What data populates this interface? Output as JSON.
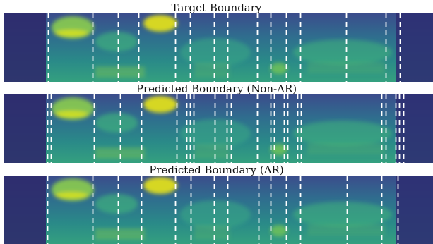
{
  "chart_data": [
    {
      "type": "heatmap",
      "title": "Target Boundary",
      "colormap": "viridis",
      "grid": false,
      "boundary_line_style": "white dashed vertical lines",
      "boundaries": [
        68,
        131,
        167,
        196,
        248,
        269,
        303,
        322,
        364,
        383,
        405,
        425,
        490,
        546,
        566
      ]
    },
    {
      "type": "heatmap",
      "title": "Predicted Boundary (Non-AR)",
      "colormap": "viridis",
      "grid": false,
      "boundary_line_style": "white dashed vertical lines",
      "boundaries": [
        67,
        72,
        133,
        170,
        200,
        250,
        264,
        269,
        274,
        304,
        321,
        327,
        364,
        383,
        388,
        402,
        407,
        421,
        426,
        540,
        546,
        560,
        565,
        571
      ]
    },
    {
      "type": "heatmap",
      "title": "Predicted Boundary (AR)",
      "colormap": "viridis",
      "grid": false,
      "boundary_line_style": "white dashed vertical lines",
      "boundaries": [
        67,
        131,
        167,
        200,
        248,
        270,
        303,
        322,
        366,
        383,
        405,
        425,
        491,
        540,
        563
      ]
    }
  ]
}
